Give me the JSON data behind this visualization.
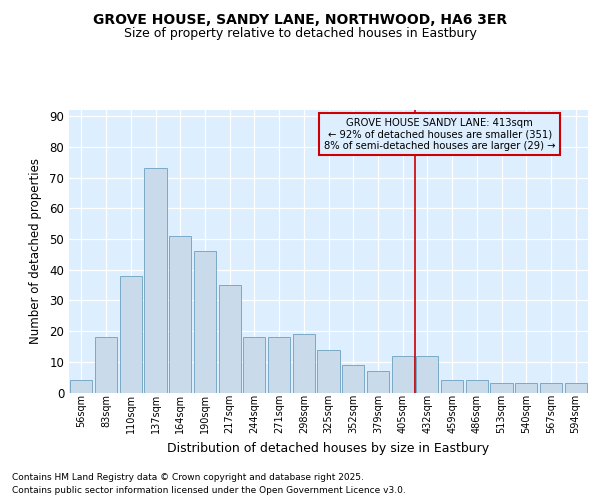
{
  "title": "GROVE HOUSE, SANDY LANE, NORTHWOOD, HA6 3ER",
  "subtitle": "Size of property relative to detached houses in Eastbury",
  "xlabel": "Distribution of detached houses by size in Eastbury",
  "ylabel": "Number of detached properties",
  "bar_labels": [
    "56sqm",
    "83sqm",
    "110sqm",
    "137sqm",
    "164sqm",
    "190sqm",
    "217sqm",
    "244sqm",
    "271sqm",
    "298sqm",
    "325sqm",
    "352sqm",
    "379sqm",
    "405sqm",
    "432sqm",
    "459sqm",
    "486sqm",
    "513sqm",
    "540sqm",
    "567sqm",
    "594sqm"
  ],
  "bar_values": [
    4,
    18,
    38,
    73,
    51,
    46,
    35,
    18,
    18,
    19,
    14,
    9,
    7,
    12,
    12,
    4,
    4,
    3,
    3,
    3,
    3
  ],
  "bar_color": "#c9daea",
  "bar_edge_color": "#7aaac8",
  "fig_bg_color": "#ffffff",
  "plot_bg_color": "#ddeeff",
  "grid_color": "#ffffff",
  "vline_x_index": 13.5,
  "vline_color": "#cc0000",
  "annotation_line1": "GROVE HOUSE SANDY LANE: 413sqm",
  "annotation_line2": "← 92% of detached houses are smaller (351)",
  "annotation_line3": "8% of semi-detached houses are larger (29) →",
  "annotation_box_color": "#cc0000",
  "ylim": [
    0,
    92
  ],
  "yticks": [
    0,
    10,
    20,
    30,
    40,
    50,
    60,
    70,
    80,
    90
  ],
  "footnote1": "Contains HM Land Registry data © Crown copyright and database right 2025.",
  "footnote2": "Contains public sector information licensed under the Open Government Licence v3.0."
}
